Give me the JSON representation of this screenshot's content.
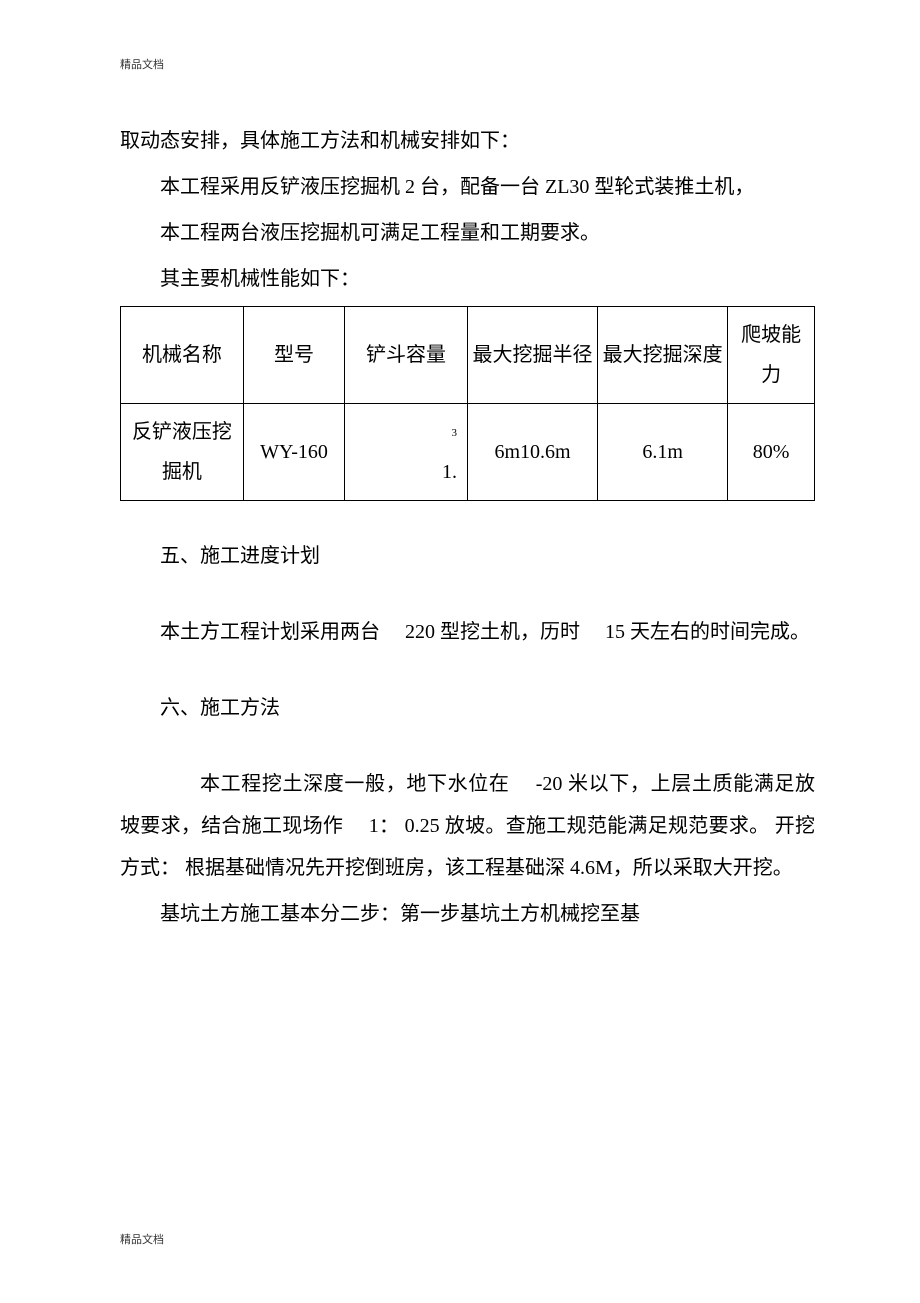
{
  "header_mark": "精品文档",
  "footer_mark": "精品文档",
  "para1": "取动态安排，具体施工方法和机械安排如下：",
  "para2": "本工程采用反铲液压挖掘机 2 台，配备一台 ZL30 型轮式装推土机，",
  "para3": "本工程两台液压挖掘机可满足工程量和工期要求。",
  "para4": "其主要机械性能如下：",
  "table": {
    "headers": {
      "c1": "机械名称",
      "c2": "型号",
      "c3": "铲斗容量",
      "c4": "最大挖掘半径",
      "c5": "最大挖掘深度",
      "c6": "爬坡能力"
    },
    "row1": {
      "c1": "反铲液压挖掘机",
      "c2": "WY-160",
      "c3_sup": "3",
      "c3_main": "1.",
      "c4": "6m10.6m",
      "c5": "6.1m",
      "c6": "80%"
    }
  },
  "section5_title": "五、施工进度计划",
  "para5": "本土方工程计划采用两台　 220 型挖土机，历时　 15 天左右的时间完成。",
  "section6_title": "六、施工方法",
  "para6": "本工程挖土深度一般，地下水位在　 -20 米以下，上层土质能满足放坡要求，结合施工现场作　 1： 0.25 放坡。查施工规范能满足规范要求。 开挖方式： 根据基础情况先开挖倒班房，该工程基础深 4.6M，所以采取大开挖。",
  "para7": "基坑土方施工基本分二步：第一步基坑土方机械挖至基",
  "colors": {
    "text": "#000000",
    "background": "#ffffff",
    "border": "#000000"
  },
  "font_sizes": {
    "body": 20,
    "mark": 11,
    "superscript": 11
  }
}
